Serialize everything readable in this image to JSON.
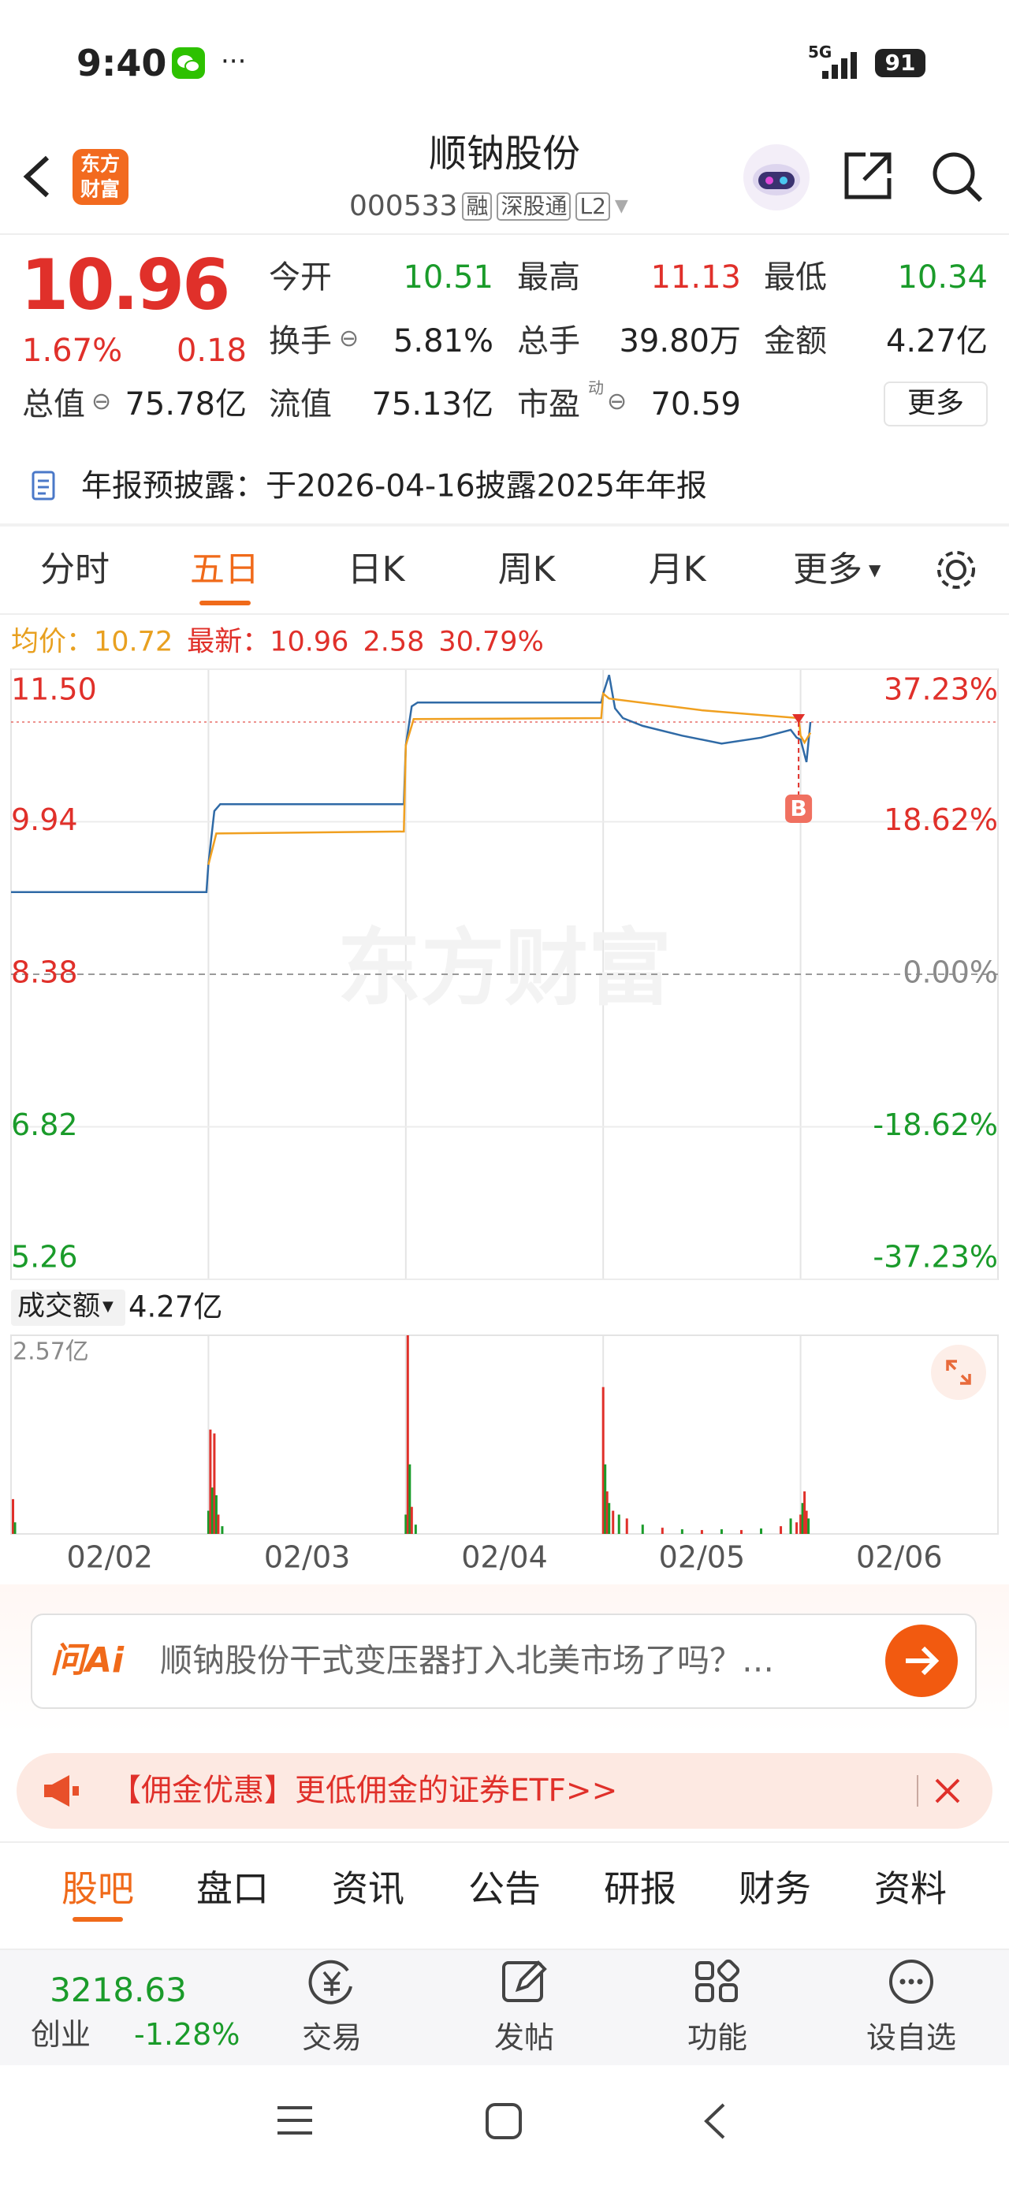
{
  "status_bar": {
    "time": "9:40",
    "more": "···",
    "network": "5G",
    "battery": "91"
  },
  "header": {
    "logo": [
      "东方",
      "财富"
    ],
    "title": "顺钠股份",
    "code": "000533",
    "badges": [
      "融",
      "深股通",
      "L2"
    ]
  },
  "quote": {
    "price": "10.96",
    "change_pct": "1.67%",
    "change": "0.18",
    "fields": [
      {
        "label": "今开",
        "value": "10.51"
      },
      {
        "label": "最高",
        "value": "11.13"
      },
      {
        "label": "最低",
        "value": "10.34"
      },
      {
        "label": "换手",
        "value": "5.81%"
      },
      {
        "label": "总手",
        "value": "39.80万"
      },
      {
        "label": "金额",
        "value": "4.27亿"
      },
      {
        "label": "流值",
        "value": "75.13亿"
      },
      {
        "label": "市盈",
        "value": "70.59"
      }
    ],
    "market_cap": {
      "label": "总值",
      "value": "75.78亿"
    },
    "pe_note": "动",
    "more": "更多"
  },
  "notice": "年报预披露：于2026-04-16披露2025年年报",
  "chart_tabs": [
    "分时",
    "五日",
    "日K",
    "周K",
    "月K",
    "更多"
  ],
  "chart_info": {
    "avg_label": "均价：",
    "avg": "10.72",
    "last_label": "最新：",
    "last": "10.96",
    "change": "2.58",
    "change_pct": "30.79%"
  },
  "watermark": "东方财富",
  "volume_header": {
    "label": "成交额",
    "value": "4.27亿"
  },
  "chart_data": [
    {
      "type": "line",
      "xlim": [
        0,
        5
      ],
      "ylim": [
        5.26,
        11.5
      ],
      "yticks": [
        {
          "value": 11.5,
          "label": "11.50"
        },
        9.94,
        8.38,
        6.82,
        5.26
      ],
      "y2lim": [
        -37.23,
        37.23
      ],
      "y2ticks": [
        {
          "value": 37.23,
          "label": "37.23%"
        },
        {
          "value": 18.62,
          "label": "18.62%"
        },
        {
          "value": 0,
          "label": "0.00%"
        },
        {
          "value": -18.62,
          "label": "-18.62%"
        },
        {
          "value": -37.23,
          "label": "-37.23%"
        }
      ],
      "reference_value": 10.96,
      "marker": {
        "label": "B",
        "x": 3.99,
        "value": 10.96
      },
      "series": [
        {
          "color": "#2f6aa6",
          "x": [
            0,
            0.99,
            1.0,
            1.03,
            1.06,
            1.99,
            2.0,
            2.03,
            2.06,
            2.99,
            3.0,
            3.03,
            3.06,
            3.1,
            3.2,
            3.4,
            3.6,
            3.8,
            3.95,
            3.98,
            4.0,
            4.03,
            4.05
          ],
          "values": [
            9.22,
            9.22,
            9.51,
            10.05,
            10.12,
            10.12,
            10.72,
            11.12,
            11.16,
            11.16,
            11.25,
            11.44,
            11.1,
            11.0,
            10.92,
            10.82,
            10.74,
            10.8,
            10.88,
            10.8,
            10.78,
            10.55,
            10.96
          ]
        },
        {
          "color": "#f0a020",
          "x": [
            1.0,
            1.04,
            1.99,
            2.0,
            2.04,
            2.99,
            3.0,
            3.03,
            3.5,
            3.99,
            4.0,
            4.02,
            4.05
          ],
          "values": [
            9.5,
            9.82,
            9.84,
            10.72,
            10.99,
            11.0,
            11.25,
            11.2,
            11.08,
            11.0,
            10.82,
            10.75,
            10.85
          ]
        }
      ]
    },
    {
      "type": "bar",
      "xlim": [
        0,
        5
      ],
      "ylim": [
        0,
        2.57
      ],
      "yticks": [
        {
          "value": 2.57,
          "label": "2.57亿"
        }
      ],
      "xticks": [
        {
          "value": 0.5,
          "label": "02/02"
        },
        {
          "value": 1.5,
          "label": "02/03"
        },
        {
          "value": 2.5,
          "label": "02/04"
        },
        {
          "value": 3.5,
          "label": "02/05"
        },
        {
          "value": 4.5,
          "label": "02/06"
        }
      ],
      "x": [
        0.01,
        0.02,
        1.0,
        1.01,
        1.02,
        1.03,
        1.04,
        1.05,
        1.07,
        2.0,
        2.01,
        2.02,
        2.03,
        2.05,
        3.0,
        3.01,
        3.02,
        3.03,
        3.05,
        3.08,
        3.12,
        3.2,
        3.3,
        3.4,
        3.5,
        3.6,
        3.7,
        3.8,
        3.9,
        3.95,
        3.98,
        4.0,
        4.01,
        4.02,
        4.03,
        4.04
      ],
      "values": [
        0.45,
        0.15,
        0.3,
        1.35,
        0.6,
        1.3,
        0.5,
        0.25,
        0.1,
        0.25,
        2.57,
        0.9,
        0.35,
        0.12,
        1.9,
        0.9,
        0.55,
        0.4,
        0.3,
        0.25,
        0.2,
        0.12,
        0.08,
        0.06,
        0.05,
        0.06,
        0.05,
        0.07,
        0.1,
        0.2,
        0.15,
        0.25,
        0.4,
        0.55,
        0.3,
        0.2
      ],
      "colors": [
        "#e0302a",
        "#1a9b2a",
        "#1a9b2a",
        "#e0302a",
        "#1a9b2a",
        "#e0302a",
        "#1a9b2a",
        "#e0302a",
        "#1a9b2a",
        "#1a9b2a",
        "#e0302a",
        "#1a9b2a",
        "#e0302a",
        "#1a9b2a",
        "#e0302a",
        "#1a9b2a",
        "#e0302a",
        "#1a9b2a",
        "#e0302a",
        "#1a9b2a",
        "#e0302a",
        "#1a9b2a",
        "#e0302a",
        "#1a9b2a",
        "#e0302a",
        "#1a9b2a",
        "#e0302a",
        "#1a9b2a",
        "#e0302a",
        "#1a9b2a",
        "#e0302a",
        "#e0302a",
        "#1a9b2a",
        "#e0302a",
        "#e0302a",
        "#1a9b2a"
      ]
    }
  ],
  "ai_box": {
    "logo": "问Ai",
    "prompt": "顺钠股份干式变压器打入北美市场了吗？…"
  },
  "promo": "【佣金优惠】更低佣金的证券ETF>>",
  "content_tabs": [
    "股吧",
    "盘口",
    "资讯",
    "公告",
    "研报",
    "财务",
    "资料"
  ],
  "index": {
    "value": "3218.63",
    "name": "创业",
    "change_pct": "-1.28%"
  },
  "toolbar": [
    "交易",
    "发帖",
    "功能",
    "设自选"
  ]
}
